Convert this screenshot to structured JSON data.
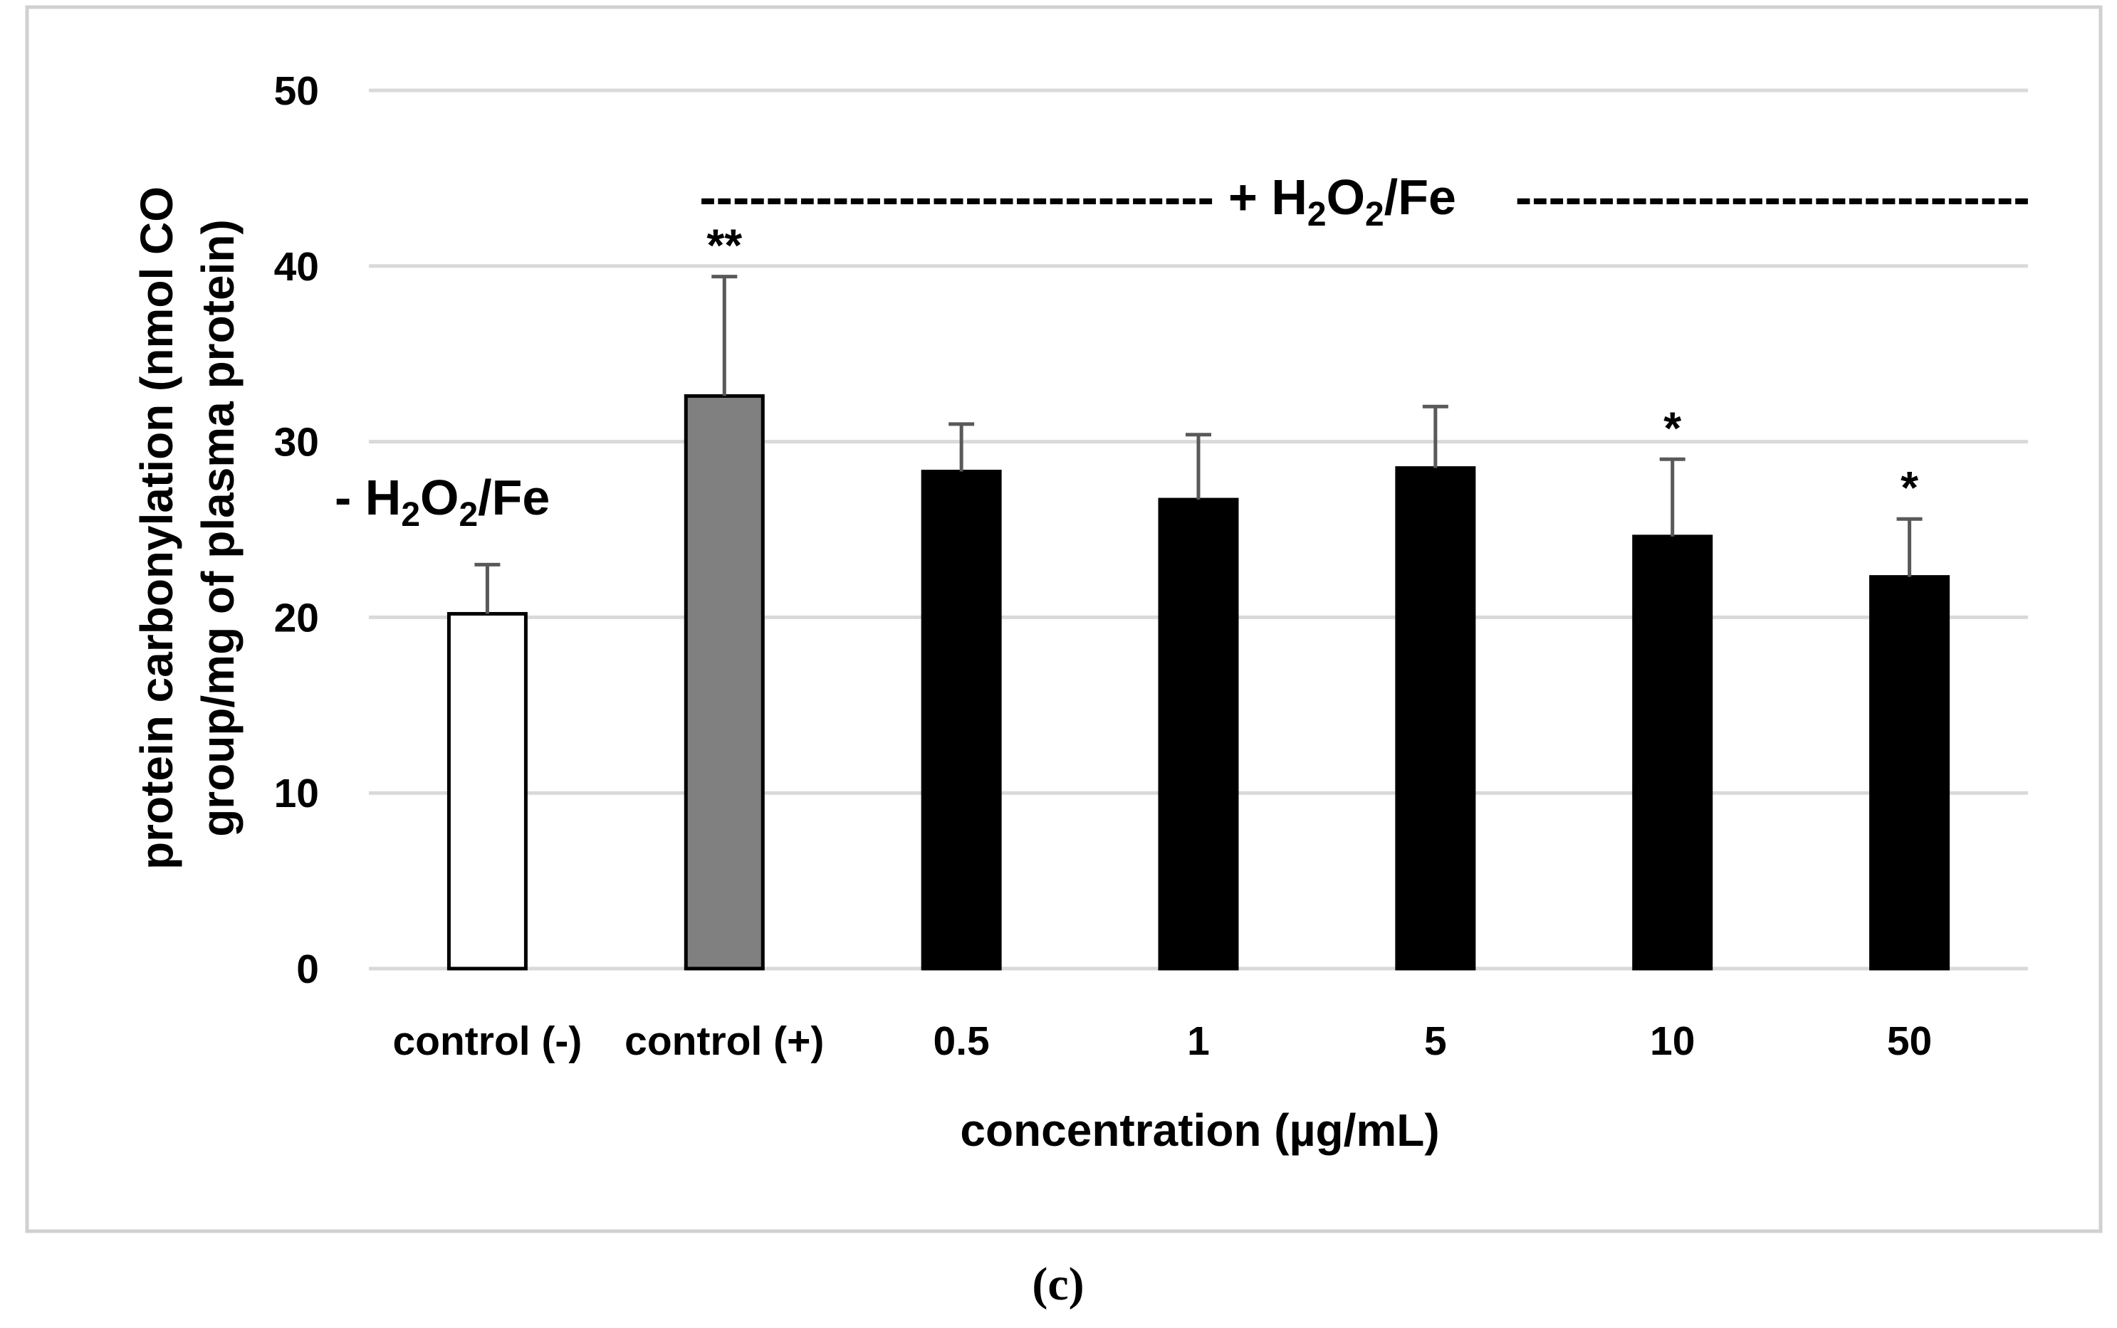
{
  "chart_data": {
    "type": "bar",
    "categories": [
      "control (-)",
      "control (+)",
      "0.5",
      "1",
      "5",
      "10",
      "50"
    ],
    "values": [
      20.2,
      32.6,
      28.3,
      26.7,
      28.5,
      24.6,
      22.3
    ],
    "errors": [
      2.8,
      6.8,
      2.7,
      3.7,
      3.5,
      4.4,
      3.3
    ],
    "bar_colors": [
      "#ffffff",
      "#808080",
      "#000000",
      "#000000",
      "#000000",
      "#000000",
      "#000000"
    ],
    "bar_edge_colors": [
      "#000000",
      "#000000",
      "#000000",
      "#000000",
      "#000000",
      "#000000",
      "#000000"
    ],
    "error_bar_color": "#595959",
    "gridline_color": "#d9d9d9",
    "significance": [
      "",
      "**",
      "",
      "",
      "",
      "*",
      "*"
    ],
    "ylim": [
      0,
      50
    ],
    "yticks": [
      0,
      10,
      20,
      30,
      40,
      50
    ],
    "grid": true,
    "xlabel": "concentration (µg/mL)",
    "ylabel_line1": "protein carbonylation (nmol CO",
    "ylabel_line2": "group/mg of plasma protein)",
    "annotation_minus": {
      "prefix": "- H",
      "sub1": "2",
      "mid": "O",
      "sub2": "2",
      "suffix": "/Fe"
    },
    "annotation_plus": {
      "dashes_left": "-------------------------------",
      "prefix": "+ H",
      "sub1": "2",
      "mid": "O",
      "sub2": "2",
      "suffix": "/Fe",
      "dashes_right": "-------------------------------"
    }
  },
  "caption": "(c)"
}
